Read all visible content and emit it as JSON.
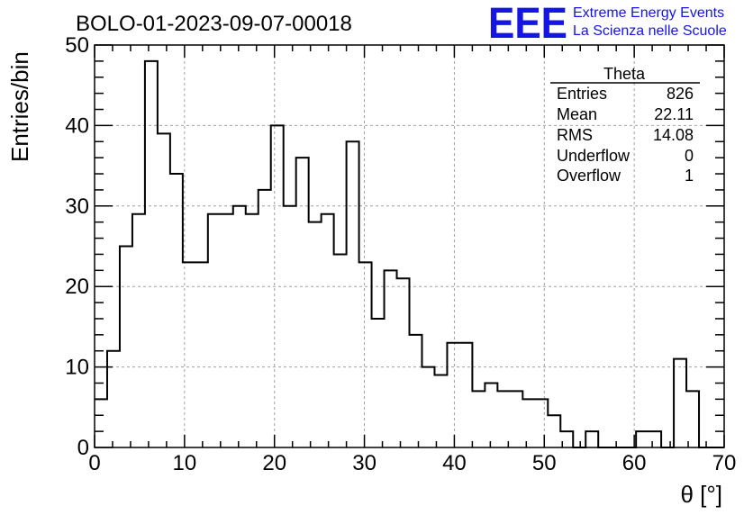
{
  "chart_data": {
    "type": "bar",
    "title": "BOLO-01-2023-09-07-00018",
    "xlabel": "θ [°]",
    "ylabel": "Entries/bin",
    "xlim": [
      0,
      70
    ],
    "ylim": [
      0,
      50
    ],
    "grid": true,
    "x_ticks": [
      "0",
      "10",
      "20",
      "30",
      "40",
      "50",
      "60",
      "70"
    ],
    "y_ticks": [
      "0",
      "10",
      "20",
      "30",
      "40",
      "50"
    ],
    "bin_width": 1.4,
    "bin_edges_start": 0,
    "values": [
      6,
      12,
      25,
      29,
      48,
      39,
      34,
      23,
      23,
      29,
      29,
      30,
      29,
      32,
      40,
      30,
      36,
      28,
      29,
      24,
      38,
      23,
      16,
      22,
      21,
      14,
      10,
      9,
      13,
      13,
      7,
      8,
      7,
      7,
      6,
      6,
      4,
      2,
      0,
      2,
      0,
      0,
      0,
      2,
      2,
      0,
      11,
      7,
      0,
      0
    ],
    "stats_box": {
      "title": "Theta",
      "rows": [
        {
          "label": "Entries",
          "value": "826"
        },
        {
          "label": "Mean",
          "value": "22.11"
        },
        {
          "label": "RMS",
          "value": "14.08"
        },
        {
          "label": "Underflow",
          "value": "0"
        },
        {
          "label": "Overflow",
          "value": "1"
        }
      ]
    }
  },
  "logo": {
    "text": "EEE",
    "line1": "Extreme Energy Events",
    "line2": "La Scienza nelle Scuole",
    "color": "#1515e6"
  },
  "colors": {
    "line": "#000000",
    "grid": "#a0a0a0"
  }
}
